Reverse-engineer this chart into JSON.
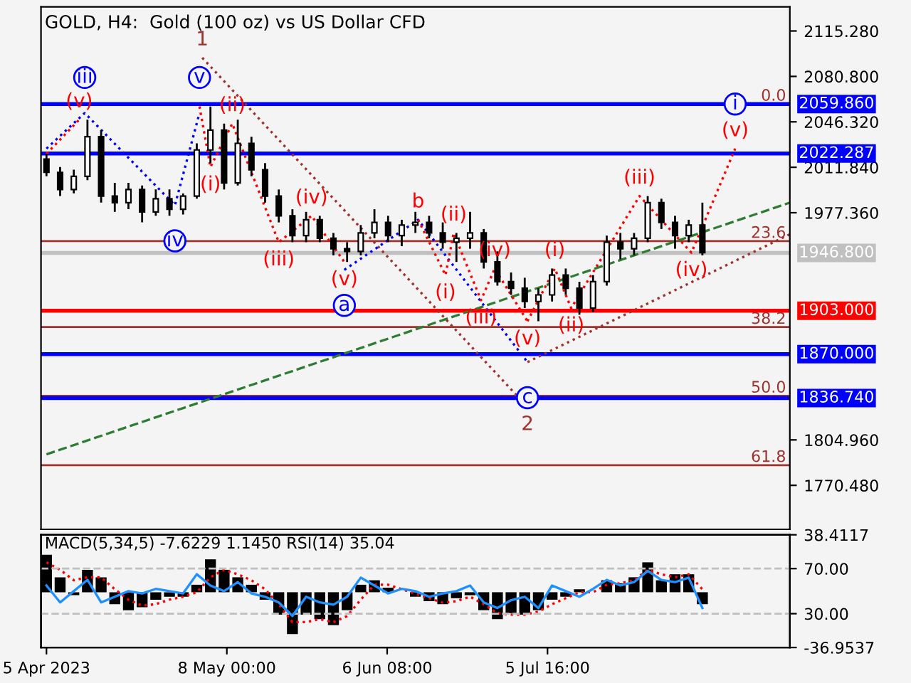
{
  "chart_data": [
    {
      "type": "candlestick",
      "title": "GOLD, H4:  Gold (100 oz) vs US Dollar CFD",
      "color": "#000000",
      "tick_labels": "y",
      "legend": false,
      "x": [
        "2023-04-05",
        "2023-04-07T12:00",
        "2023-04-10",
        "2023-04-12T12:00",
        "2023-04-15",
        "2023-04-17T12:00",
        "2023-04-20",
        "2023-04-22T12:00",
        "2023-04-25",
        "2023-04-27T12:00",
        "2023-04-30",
        "2023-05-02T12:00",
        "2023-05-05",
        "2023-05-07T12:00",
        "2023-05-10",
        "2023-05-12T12:00",
        "2023-05-15",
        "2023-05-17T12:00",
        "2023-05-20",
        "2023-05-22T12:00",
        "2023-05-25",
        "2023-05-27T12:00",
        "2023-05-30",
        "2023-06-01T12:00",
        "2023-06-04",
        "2023-06-06T12:00",
        "2023-06-09",
        "2023-06-11T12:00",
        "2023-06-14",
        "2023-06-16T12:00",
        "2023-06-19",
        "2023-06-21T12:00",
        "2023-06-24",
        "2023-06-26T12:00",
        "2023-06-29",
        "2023-07-01T12:00",
        "2023-07-04",
        "2023-07-06T12:00",
        "2023-07-09",
        "2023-07-11T12:00",
        "2023-07-14",
        "2023-07-16T12:00",
        "2023-07-19",
        "2023-07-21T12:00",
        "2023-07-24",
        "2023-07-26T12:00",
        "2023-07-29",
        "2023-07-31T12:00",
        "2023-08-03"
      ],
      "ohlc": [
        [
          2018,
          2022,
          2005,
          2008
        ],
        [
          2008,
          2012,
          1990,
          1995
        ],
        [
          1995,
          2010,
          1992,
          2005
        ],
        [
          2005,
          2048,
          2002,
          2035
        ],
        [
          2035,
          2040,
          1985,
          1990
        ],
        [
          1990,
          2000,
          1978,
          1985
        ],
        [
          1985,
          2000,
          1980,
          1995
        ],
        [
          1995,
          1998,
          1970,
          1978
        ],
        [
          1978,
          1995,
          1975,
          1988
        ],
        [
          1988,
          1995,
          1975,
          1980
        ],
        [
          1980,
          1992,
          1976,
          1990
        ],
        [
          1990,
          2030,
          1988,
          2025
        ],
        [
          2025,
          2058,
          2015,
          2040
        ],
        [
          2040,
          2045,
          1995,
          2000
        ],
        [
          2000,
          2048,
          1998,
          2030
        ],
        [
          2030,
          2035,
          2005,
          2010
        ],
        [
          2010,
          2015,
          1985,
          1990
        ],
        [
          1990,
          1995,
          1970,
          1975
        ],
        [
          1975,
          1980,
          1955,
          1960
        ],
        [
          1960,
          1978,
          1955,
          1972
        ],
        [
          1972,
          1975,
          1955,
          1958
        ],
        [
          1958,
          1962,
          1945,
          1950
        ],
        [
          1950,
          1955,
          1940,
          1948
        ],
        [
          1948,
          1968,
          1945,
          1962
        ],
        [
          1962,
          1980,
          1958,
          1970
        ],
        [
          1970,
          1975,
          1955,
          1960
        ],
        [
          1960,
          1972,
          1952,
          1968
        ],
        [
          1968,
          1978,
          1962,
          1970
        ],
        [
          1970,
          1975,
          1958,
          1962
        ],
        [
          1962,
          1970,
          1950,
          1955
        ],
        [
          1955,
          1962,
          1940,
          1958
        ],
        [
          1958,
          1978,
          1950,
          1962
        ],
        [
          1962,
          1965,
          1935,
          1940
        ],
        [
          1940,
          1948,
          1922,
          1925
        ],
        [
          1925,
          1932,
          1915,
          1920
        ],
        [
          1920,
          1928,
          1905,
          1910
        ],
        [
          1910,
          1920,
          1895,
          1915
        ],
        [
          1915,
          1935,
          1910,
          1930
        ],
        [
          1930,
          1935,
          1915,
          1920
        ],
        [
          1920,
          1925,
          1900,
          1905
        ],
        [
          1905,
          1930,
          1902,
          1925
        ],
        [
          1925,
          1960,
          1922,
          1955
        ],
        [
          1955,
          1962,
          1942,
          1950
        ],
        [
          1950,
          1962,
          1945,
          1958
        ],
        [
          1958,
          1990,
          1955,
          1985
        ],
        [
          1985,
          1988,
          1965,
          1970
        ],
        [
          1970,
          1975,
          1950,
          1960
        ],
        [
          1960,
          1972,
          1955,
          1968
        ],
        [
          1968,
          1985,
          1945,
          1947
        ]
      ],
      "xlim": [
        "2023-04-04",
        "2023-08-19"
      ],
      "ylim": [
        1737.1,
        2133.6
      ],
      "yticks": [
        {
          "value": 2115.28,
          "label": "2115.280"
        },
        {
          "value": 2080.8,
          "label": "2080.800"
        },
        {
          "value": 2046.32,
          "label": "2046.320"
        },
        {
          "value": 2011.84,
          "label": "2011.840"
        },
        {
          "value": 1977.36,
          "label": "1977.360"
        },
        {
          "value": 1804.96,
          "label": "1804.960"
        },
        {
          "value": 1770.48,
          "label": "1770.480"
        }
      ],
      "ref_lines": [
        {
          "axis": "y",
          "value": 1955.8,
          "color": "#a0322d"
        },
        {
          "axis": "y",
          "value": 1890.6,
          "color": "#a0322d"
        },
        {
          "axis": "y",
          "value": 1838.4,
          "color": "#a0322d"
        },
        {
          "axis": "y",
          "value": 1785.8,
          "color": "#a0322d"
        },
        {
          "axis": "y",
          "value": 2059.86,
          "label": "2059.860",
          "color": "#0000ff"
        },
        {
          "axis": "y",
          "value": 2022.287,
          "label": "2022.287",
          "color": "#0000ff"
        },
        {
          "axis": "y",
          "value": 1946.8,
          "label": "1946.800",
          "color": "#c0c0c0"
        },
        {
          "axis": "y",
          "value": 1903.0,
          "label": "1903.000",
          "color": "#ff0000"
        },
        {
          "axis": "y",
          "value": 1870.0,
          "label": "1870.000",
          "color": "#0000ff"
        },
        {
          "axis": "y",
          "value": 1836.74,
          "label": "1836.740",
          "color": "#0000ff"
        }
      ],
      "series": [
        {
          "type": "line",
          "x": [
            "2023-04-05",
            "2023-08-19"
          ],
          "values": [
            1794,
            1985
          ],
          "color": "#2e7d32",
          "line_style": "dashed"
        },
        {
          "type": "line",
          "x": [
            "2023-07-02",
            "2023-08-19"
          ],
          "values": [
            1864,
            1961
          ],
          "color": "#a0322d",
          "line_style": "dotted"
        },
        {
          "type": "line",
          "x": [
            "2023-05-03T12:00",
            "2023-07-02"
          ],
          "values": [
            2095,
            1830
          ],
          "color": "#a0322d",
          "line_style": "dotted"
        },
        {
          "type": "line",
          "x": [
            "2023-04-05",
            "2023-04-12",
            "2023-04-28T12:00",
            "2023-05-03"
          ],
          "values": [
            2026,
            2053,
            1983,
            2053
          ],
          "color": "#0000ff",
          "line_style": "dotted"
        },
        {
          "type": "line",
          "x": [
            "2023-05-29T12:00",
            "2023-06-12",
            "2023-07-02"
          ],
          "values": [
            1934,
            1972,
            1864
          ],
          "color": "#0000ff",
          "line_style": "dotted"
        },
        {
          "type": "line",
          "x": [
            "2023-04-05",
            "2023-04-11"
          ],
          "values": [
            2022,
            2048
          ],
          "color": "#ff0000",
          "line_style": "dotted"
        },
        {
          "type": "line",
          "x": [
            "2023-05-03",
            "2023-05-05",
            "2023-05-09",
            "2023-05-17T12:00",
            "2023-05-23T12:00",
            "2023-05-29T12:00"
          ],
          "values": [
            2058,
            2012,
            2045,
            1955,
            1975,
            1940
          ],
          "color": "#ff0000",
          "line_style": "dotted"
        },
        {
          "type": "line",
          "x": [
            "2023-06-12",
            "2023-06-17",
            "2023-06-18T12:00",
            "2023-06-23T12:00",
            "2023-06-26",
            "2023-07-02"
          ],
          "values": [
            1972,
            1930,
            1962,
            1911,
            1935,
            1895
          ],
          "color": "#ff0000",
          "line_style": "dotted"
        },
        {
          "type": "line",
          "x": [
            "2023-07-02",
            "2023-07-07",
            "2023-07-10",
            "2023-07-22T12:00",
            "2023-08-01",
            "2023-08-09"
          ],
          "values": [
            1895,
            1935,
            1905,
            1990,
            1947,
            2026
          ],
          "color": "#ff0000",
          "line_style": "dotted"
        }
      ],
      "annotations": [
        {
          "text": "0.0",
          "y": 2059.86
        },
        {
          "text": "23.6",
          "y": 1955.8
        },
        {
          "text": "38.2",
          "y": 1890.6
        },
        {
          "text": "50.0",
          "y": 1838.4
        },
        {
          "text": "61.8",
          "y": 1785.8
        },
        {
          "text": "1",
          "x": "2023-05-03T12:00",
          "y": 2095
        },
        {
          "text": "2",
          "x": "2023-07-02",
          "y": 1830
        },
        {
          "text": "iii",
          "x": "2023-04-12",
          "y": 2053
        },
        {
          "text": "iv",
          "x": "2023-04-28T12:00",
          "y": 1983
        },
        {
          "text": "v",
          "x": "2023-05-03",
          "y": 2053
        },
        {
          "text": "a",
          "x": "2023-05-29T12:00",
          "y": 1934
        },
        {
          "text": "b",
          "x": "2023-06-12",
          "y": 1972
        },
        {
          "text": "c",
          "x": "2023-07-02",
          "y": 1864
        },
        {
          "text": "i",
          "x": "2023-08-09",
          "y": 2059.86
        },
        {
          "text": "(v)",
          "x": "2023-04-11",
          "y": 2048
        },
        {
          "text": "(i)",
          "x": "2023-05-05",
          "y": 2012
        },
        {
          "text": "(ii)",
          "x": "2023-05-09",
          "y": 2045
        },
        {
          "text": "(iii)",
          "x": "2023-05-17T12:00",
          "y": 1955
        },
        {
          "text": "(iv)",
          "x": "2023-05-23T12:00",
          "y": 1975
        },
        {
          "text": "(v)",
          "x": "2023-05-29T12:00",
          "y": 1940
        },
        {
          "text": "(i)",
          "x": "2023-06-17",
          "y": 1930
        },
        {
          "text": "(ii)",
          "x": "2023-06-18T12:00",
          "y": 1962
        },
        {
          "text": "(iii)",
          "x": "2023-06-23T12:00",
          "y": 1911
        },
        {
          "text": "(iv)",
          "x": "2023-06-26",
          "y": 1935
        },
        {
          "text": "(v)",
          "x": "2023-07-02",
          "y": 1895
        },
        {
          "text": "(i)",
          "x": "2023-07-07",
          "y": 1935
        },
        {
          "text": "(ii)",
          "x": "2023-07-10",
          "y": 1905
        },
        {
          "text": "(iii)",
          "x": "2023-07-22T12:00",
          "y": 1990
        },
        {
          "text": "(iv)",
          "x": "2023-08-01",
          "y": 1947
        },
        {
          "text": "(v)",
          "x": "2023-08-09",
          "y": 2026
        }
      ]
    },
    {
      "type": "bar",
      "title": "MACD(5,34,5) -7.6229 1.1450 RSI(14) 35.04",
      "legend": false,
      "x": [
        "2023-04-05",
        "2023-04-07T12:00",
        "2023-04-10",
        "2023-04-12T12:00",
        "2023-04-15",
        "2023-04-17T12:00",
        "2023-04-20",
        "2023-04-22T12:00",
        "2023-04-25",
        "2023-04-27T12:00",
        "2023-04-30",
        "2023-05-02T12:00",
        "2023-05-05",
        "2023-05-07T12:00",
        "2023-05-10",
        "2023-05-12T12:00",
        "2023-05-15",
        "2023-05-17T12:00",
        "2023-05-20",
        "2023-05-22T12:00",
        "2023-05-25",
        "2023-05-27T12:00",
        "2023-05-30",
        "2023-06-01T12:00",
        "2023-06-04",
        "2023-06-06T12:00",
        "2023-06-09",
        "2023-06-11T12:00",
        "2023-06-14",
        "2023-06-16T12:00",
        "2023-06-19",
        "2023-06-21T12:00",
        "2023-06-24",
        "2023-06-26T12:00",
        "2023-06-29",
        "2023-07-01T12:00",
        "2023-07-04",
        "2023-07-06T12:00",
        "2023-07-09",
        "2023-07-11T12:00",
        "2023-07-14",
        "2023-07-16T12:00",
        "2023-07-19",
        "2023-07-21T12:00",
        "2023-07-24",
        "2023-07-26T12:00",
        "2023-07-29",
        "2023-07-31T12:00",
        "2023-08-03"
      ],
      "xlim": [
        "2023-04-04",
        "2023-08-19"
      ],
      "xticks": [
        {
          "value": "2023-04-05",
          "label": "5 Apr 2023"
        },
        {
          "value": "2023-05-08",
          "label": "8 May 00:00"
        },
        {
          "value": "2023-06-06T08:00",
          "label": "6 Jun 08:00"
        },
        {
          "value": "2023-07-05T16:00",
          "label": "5 Jul 16:00"
        }
      ],
      "ylim": [
        -36.9537,
        38.4117
      ],
      "yticks": [
        38.4117,
        -36.9537
      ],
      "series": [
        {
          "type": "bar",
          "color": "#000000",
          "values": [
            25,
            10,
            -2,
            15,
            10,
            -8,
            -12,
            -10,
            -5,
            -3,
            -3,
            5,
            22,
            15,
            10,
            5,
            -5,
            -15,
            -28,
            -15,
            -18,
            -22,
            -12,
            5,
            8,
            3,
            0,
            -3,
            -6,
            -8,
            -4,
            -2,
            -12,
            -18,
            -14,
            -15,
            -12,
            -5,
            -3,
            2,
            0,
            8,
            6,
            10,
            20,
            8,
            12,
            12,
            -8
          ]
        },
        {
          "type": "line",
          "color": "#ff0000",
          "line_style": "dotted",
          "values": [
            20,
            15,
            8,
            10,
            10,
            2,
            -5,
            -9,
            -8,
            -5,
            -3,
            0,
            10,
            15,
            12,
            8,
            2,
            -8,
            -20,
            -20,
            -18,
            -20,
            -16,
            -5,
            5,
            5,
            2,
            -1,
            -4,
            -7,
            -6,
            -3,
            -8,
            -14,
            -15,
            -15,
            -13,
            -8,
            -4,
            0,
            0,
            5,
            6,
            8,
            15,
            12,
            10,
            12,
            2
          ]
        }
      ]
    },
    {
      "type": "line",
      "tick_labels": "y",
      "legend": false,
      "x": [
        "2023-04-05",
        "2023-04-07T12:00",
        "2023-04-10",
        "2023-04-12T12:00",
        "2023-04-15",
        "2023-04-17T12:00",
        "2023-04-20",
        "2023-04-22T12:00",
        "2023-04-25",
        "2023-04-27T12:00",
        "2023-04-30",
        "2023-05-02T12:00",
        "2023-05-05",
        "2023-05-07T12:00",
        "2023-05-10",
        "2023-05-12T12:00",
        "2023-05-15",
        "2023-05-17T12:00",
        "2023-05-20",
        "2023-05-22T12:00",
        "2023-05-25",
        "2023-05-27T12:00",
        "2023-05-30",
        "2023-06-01T12:00",
        "2023-06-04",
        "2023-06-06T12:00",
        "2023-06-09",
        "2023-06-11T12:00",
        "2023-06-14",
        "2023-06-16T12:00",
        "2023-06-19",
        "2023-06-21T12:00",
        "2023-06-24",
        "2023-06-26T12:00",
        "2023-06-29",
        "2023-07-01T12:00",
        "2023-07-04",
        "2023-07-06T12:00",
        "2023-07-09",
        "2023-07-11T12:00",
        "2023-07-14",
        "2023-07-16T12:00",
        "2023-07-19",
        "2023-07-21T12:00",
        "2023-07-24",
        "2023-07-26T12:00",
        "2023-07-29",
        "2023-07-31T12:00",
        "2023-08-03"
      ],
      "xlim": [
        "2023-04-04",
        "2023-08-19"
      ],
      "ylim": [
        0,
        100
      ],
      "yticks": [
        {
          "value": 70,
          "label": "70.00"
        },
        {
          "value": 30,
          "label": "30.00"
        }
      ],
      "ref_lines": [
        {
          "axis": "y",
          "value": 70,
          "color": "#c0c0c0",
          "line_style": "dashed"
        },
        {
          "axis": "y",
          "value": 30,
          "color": "#c0c0c0",
          "line_style": "dashed"
        }
      ],
      "series": [
        {
          "type": "line",
          "color": "#1e90ff",
          "line_style": "solid",
          "values": [
            55,
            40,
            50,
            60,
            40,
            45,
            50,
            48,
            52,
            50,
            48,
            65,
            55,
            50,
            58,
            48,
            45,
            40,
            28,
            45,
            40,
            38,
            45,
            62,
            55,
            48,
            52,
            50,
            45,
            48,
            50,
            55,
            40,
            35,
            42,
            45,
            35,
            55,
            50,
            45,
            52,
            60,
            55,
            58,
            68,
            60,
            58,
            62,
            35
          ]
        }
      ]
    }
  ]
}
